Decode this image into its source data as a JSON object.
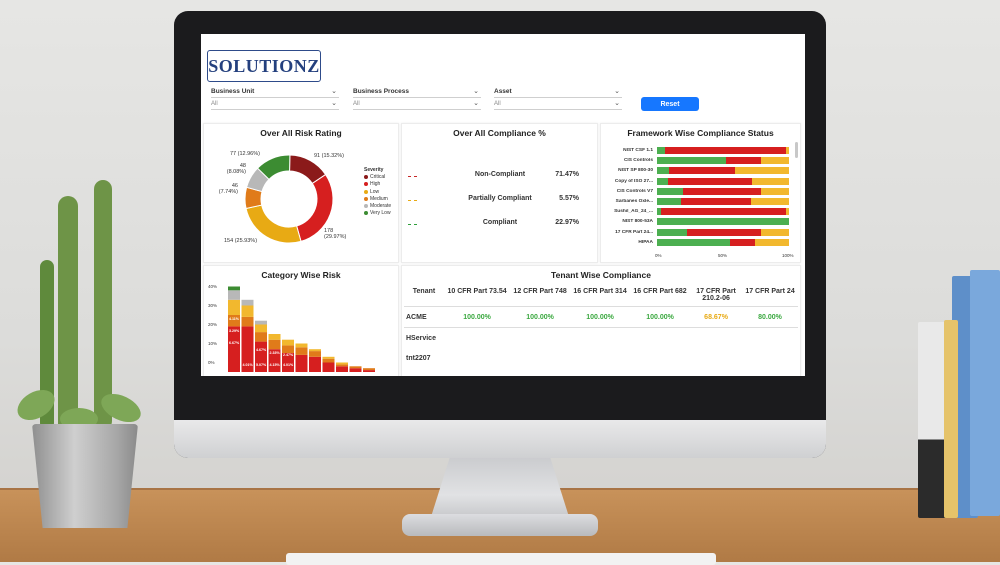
{
  "header": {
    "logo_text": "SOLUTIONZ"
  },
  "filters": [
    {
      "label": "Business Unit",
      "value": "All"
    },
    {
      "label": "Business Process",
      "value": "All"
    },
    {
      "label": "Asset",
      "value": "All"
    }
  ],
  "reset_label": "Reset",
  "risk_rating": {
    "title": "Over All Risk Rating",
    "legend_title": "Severity",
    "legend": [
      {
        "name": "Critical",
        "color": "#8b1a1a"
      },
      {
        "name": "High",
        "color": "#d61f1f"
      },
      {
        "name": "Low",
        "color": "#e8aa14"
      },
      {
        "name": "Medium",
        "color": "#e07b1a"
      },
      {
        "name": "Moderate",
        "color": "#b8b8b8"
      },
      {
        "name": "Very Low",
        "color": "#3c8c32"
      }
    ],
    "slice_labels": {
      "critical": "91 (15.32%)",
      "high": "178\n(29.97%)",
      "low": "154 (25.93%)",
      "medium": "46\n(7.74%)",
      "moderate": "48\n(8.08%)",
      "verylow": "77 (12.96%)"
    }
  },
  "compliance": {
    "title": "Over All Compliance %",
    "rows": [
      {
        "label": "Non-Compliant",
        "value": "71.47%",
        "color": "#c62828"
      },
      {
        "label": "Partially Compliant",
        "value": "5.57%",
        "color": "#e8aa14"
      },
      {
        "label": "Compliant",
        "value": "22.97%",
        "color": "#2e9e3a"
      }
    ]
  },
  "framework": {
    "title": "Framework Wise Compliance Status",
    "axis": [
      "0%",
      "50%",
      "100%"
    ],
    "colors": {
      "compliant": "#4caf50",
      "noncompliant": "#d61f1f",
      "partial": "#f2b82e"
    },
    "rows": [
      {
        "label": "NIST CSF 1.1",
        "c": 0.06,
        "n": 0.92,
        "p": 0.02
      },
      {
        "label": "CIS Controls",
        "c": 0.52,
        "n": 0.27,
        "p": 0.21
      },
      {
        "label": "NIST SP 800-30",
        "c": 0.09,
        "n": 0.5,
        "p": 0.41
      },
      {
        "label": "Copy of ISO 27...",
        "c": 0.08,
        "n": 0.64,
        "p": 0.28
      },
      {
        "label": "CIS Controls V7",
        "c": 0.2,
        "n": 0.59,
        "p": 0.21
      },
      {
        "label": "Sarbanes Oxle...",
        "c": 0.18,
        "n": 0.53,
        "p": 0.29
      },
      {
        "label": "Sushil_AG_24_...",
        "c": 0.03,
        "n": 0.95,
        "p": 0.02
      },
      {
        "label": "NIST 800-53A",
        "c": 1.0,
        "n": 0.0,
        "p": 0.0
      },
      {
        "label": "17 CFR Part 24...",
        "c": 0.23,
        "n": 0.56,
        "p": 0.21
      },
      {
        "label": "HIPAA",
        "c": 0.55,
        "n": 0.19,
        "p": 0.26
      }
    ]
  },
  "category_risk": {
    "title": "Category Wise Risk",
    "yticks": [
      "40%",
      "30%",
      "20%",
      "10%",
      "0%"
    ],
    "bar_labels": [
      "4.11%",
      "3.29%",
      "6.67%",
      "4.67%",
      "2.33%",
      "2.47%",
      "4.01%",
      "5.07%",
      "4.15%",
      "4.01%"
    ]
  },
  "tenant": {
    "title": "Tenant Wise Compliance",
    "headers": [
      "Tenant",
      "10 CFR Part 73.54",
      "12 CFR Part 748",
      "16 CFR Part 314",
      "16 CFR Part 682",
      "17 CFR Part 210.2-06",
      "17 CFR Part 24"
    ],
    "rows": [
      {
        "name": "ACME",
        "values": [
          "100.00%",
          "100.00%",
          "100.00%",
          "100.00%",
          "68.67%",
          "80.00%"
        ]
      },
      {
        "name": "HService",
        "values": [
          "",
          "",
          "",
          "",
          "",
          ""
        ]
      },
      {
        "name": "tnt2207",
        "values": [
          "",
          "",
          "",
          "",
          "",
          ""
        ]
      }
    ]
  }
}
